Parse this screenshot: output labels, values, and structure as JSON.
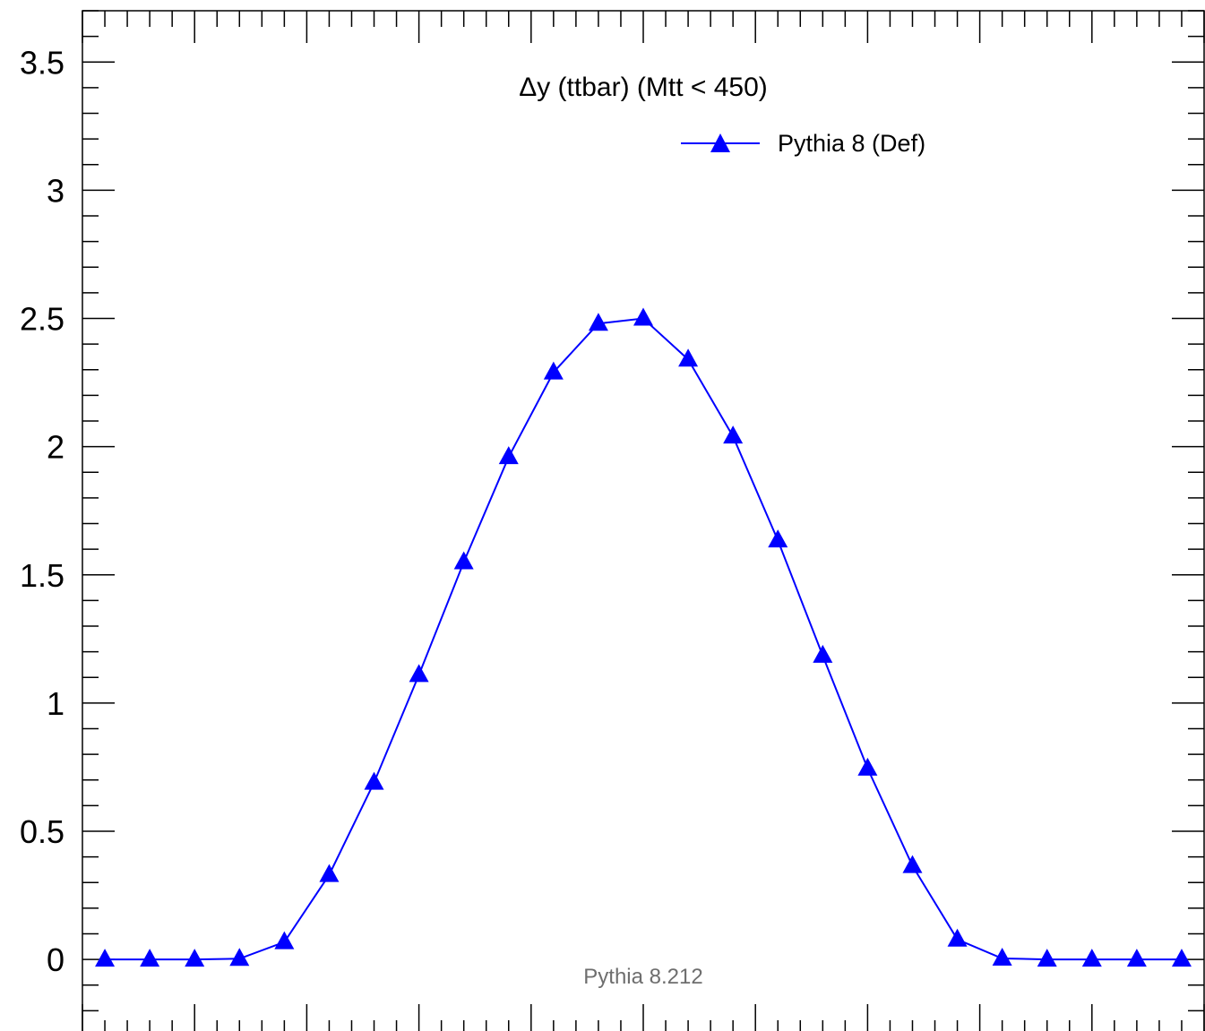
{
  "chart_data": {
    "type": "line",
    "title": "Δy (ttbar) (Mtt < 450)",
    "watermark": "Pythia 8.212",
    "xlim": [
      -5,
      5
    ],
    "ylim": [
      -0.3,
      3.7
    ],
    "y_ticks": [
      0,
      0.5,
      1,
      1.5,
      2,
      2.5,
      3,
      3.5
    ],
    "y_tick_labels": [
      "0",
      "0.5",
      "1",
      "1.5",
      "2",
      "2.5",
      "3",
      "3.5"
    ],
    "grid": false,
    "legend_position": "top-right",
    "series": [
      {
        "name": "Pythia 8 (Def)",
        "color": "#0000ff",
        "marker": "triangle-up",
        "x": [
          -4.8,
          -4.4,
          -4.0,
          -3.6,
          -3.2,
          -2.8,
          -2.4,
          -2.0,
          -1.6,
          -1.2,
          -0.8,
          -0.4,
          0.0,
          0.4,
          0.8,
          1.2,
          1.6,
          2.0,
          2.4,
          2.8,
          3.2,
          3.6,
          4.0,
          4.4,
          4.8
        ],
        "values": [
          0.0,
          0.0,
          0.0,
          0.003,
          0.068,
          0.33,
          0.69,
          1.11,
          1.55,
          1.96,
          2.29,
          2.48,
          2.5,
          2.34,
          2.04,
          1.635,
          1.185,
          0.745,
          0.365,
          0.078,
          0.004,
          0.0,
          0.0,
          0.0,
          0.0
        ]
      }
    ]
  }
}
